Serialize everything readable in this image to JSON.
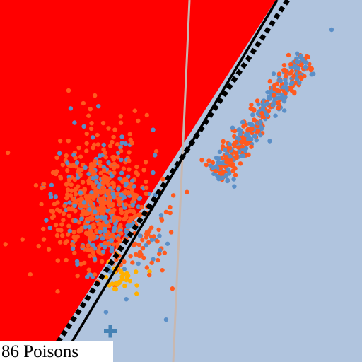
{
  "label": "86 Poisons"
}
